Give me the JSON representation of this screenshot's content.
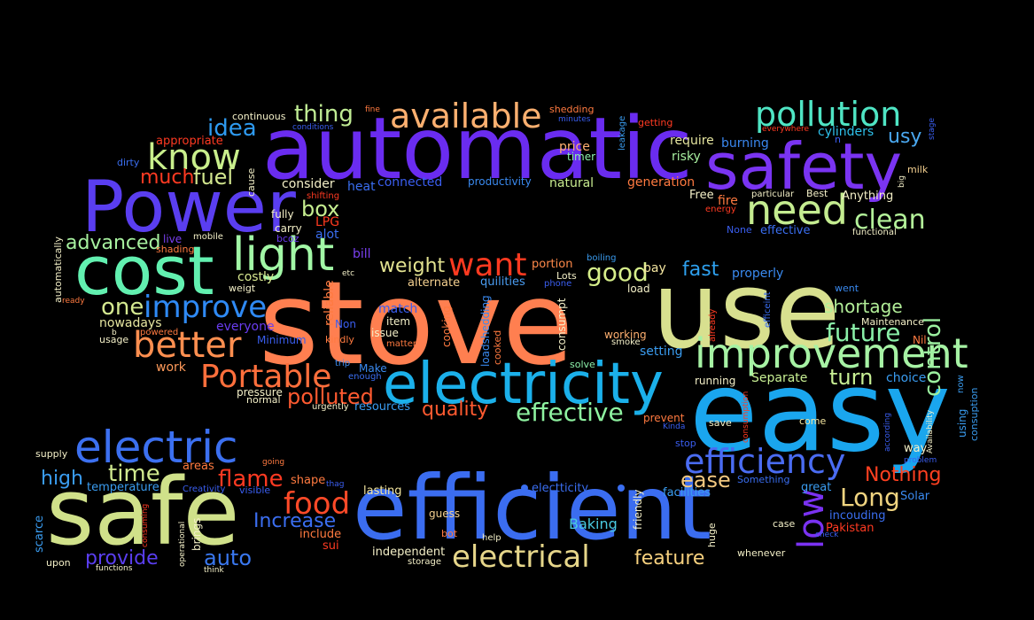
{
  "words": [
    {
      "text": "stove",
      "color": "#ff7f50"
    },
    {
      "text": "use",
      "color": "#d8e08f"
    },
    {
      "text": "easy",
      "color": "#1aa6ee"
    },
    {
      "text": "automatic",
      "color": "#6a2cf0"
    },
    {
      "text": "safe",
      "color": "#d0e18a"
    },
    {
      "text": "efficient",
      "color": "#3b6df0"
    },
    {
      "text": "cost",
      "color": "#62f0b0"
    },
    {
      "text": "Power",
      "color": "#5a3ef0"
    },
    {
      "text": "safety",
      "color": "#7a34f2"
    },
    {
      "text": "electricity",
      "color": "#1bb0ea"
    },
    {
      "text": "improvement",
      "color": "#a6f2a4"
    },
    {
      "text": "light",
      "color": "#a2f7a6"
    },
    {
      "text": "electric",
      "color": "#3c70f0"
    },
    {
      "text": "pollution",
      "color": "#4fe5c4"
    },
    {
      "text": "need",
      "color": "#c4ec90"
    },
    {
      "text": "available",
      "color": "#fcb070"
    },
    {
      "text": "know",
      "color": "#c9ef8c"
    },
    {
      "text": "improve",
      "color": "#2f8af5"
    },
    {
      "text": "better",
      "color": "#ff8f50"
    },
    {
      "text": "Portable",
      "color": "#ff6f3c"
    },
    {
      "text": "want",
      "color": "#ff3a20"
    },
    {
      "text": "efficiency",
      "color": "#4a6cf2"
    },
    {
      "text": "electrical",
      "color": "#e6d68a"
    },
    {
      "text": "future",
      "color": "#8af0a8"
    },
    {
      "text": "clean",
      "color": "#b4f29a"
    },
    {
      "text": "effective",
      "color": "#8ef2a0"
    },
    {
      "text": "food",
      "color": "#ff4a28"
    },
    {
      "text": "control",
      "color": "#9cf0a0"
    },
    {
      "text": "polluted",
      "color": "#ff5a30"
    },
    {
      "text": "Long",
      "color": "#f0d480"
    },
    {
      "text": "low",
      "color": "#7a32f2"
    },
    {
      "text": "good",
      "color": "#d6ee8a"
    },
    {
      "text": "quality",
      "color": "#ff5a30"
    },
    {
      "text": "turn",
      "color": "#c8f094"
    },
    {
      "text": "time",
      "color": "#d0e88e"
    },
    {
      "text": "one",
      "color": "#d4e890"
    },
    {
      "text": "advanced",
      "color": "#a8f2a0"
    },
    {
      "text": "thing",
      "color": "#c0ec94"
    },
    {
      "text": "idea",
      "color": "#2e9af0"
    },
    {
      "text": "flame",
      "color": "#ff3a22"
    },
    {
      "text": "provide",
      "color": "#5a3ef0"
    },
    {
      "text": "auto",
      "color": "#3a78f0"
    },
    {
      "text": "high",
      "color": "#3a9cf0"
    },
    {
      "text": "box",
      "color": "#c6ee90"
    },
    {
      "text": "fuel",
      "color": "#d2e68e"
    },
    {
      "text": "much",
      "color": "#ff3a22"
    },
    {
      "text": "weight",
      "color": "#e2e290"
    },
    {
      "text": "ease",
      "color": "#f2c880"
    },
    {
      "text": "feature",
      "color": "#f6d07e"
    },
    {
      "text": "Increase",
      "color": "#3b6ef0"
    },
    {
      "text": "Nothing",
      "color": "#ff4020"
    },
    {
      "text": "fast",
      "color": "#2ea0ee"
    },
    {
      "text": "shortage",
      "color": "#b2ee98"
    },
    {
      "text": "usy",
      "color": "#4aa8f0"
    },
    {
      "text": "Baking",
      "color": "#4acae0"
    },
    {
      "text": "require",
      "color": "#e6e6a0"
    },
    {
      "text": "risky",
      "color": "#a8f0a0"
    },
    {
      "text": "burning",
      "color": "#3a88f0"
    },
    {
      "text": "cylinders",
      "color": "#2ec0ea"
    },
    {
      "text": "generation",
      "color": "#ff7a40"
    },
    {
      "text": "natural",
      "color": "#c8ec90"
    },
    {
      "text": "price",
      "color": "#ffb070"
    },
    {
      "text": "timer",
      "color": "#8cf0aa"
    },
    {
      "text": "connected",
      "color": "#3a5ef0"
    },
    {
      "text": "productivity",
      "color": "#3a8af0"
    },
    {
      "text": "consider",
      "color": "#f4f0c8"
    },
    {
      "text": "heat",
      "color": "#3a6ef0"
    },
    {
      "text": "fully",
      "color": "#f4f0c8"
    },
    {
      "text": "carry",
      "color": "#f4f0c8"
    },
    {
      "text": "LPG",
      "color": "#ff3a20"
    },
    {
      "text": "alot",
      "color": "#3a6ef0"
    },
    {
      "text": "bcoz",
      "color": "#6a3cf0"
    },
    {
      "text": "bill",
      "color": "#7a40f0"
    },
    {
      "text": "costly",
      "color": "#d8e890"
    },
    {
      "text": "weigt",
      "color": "#f4f0c8"
    },
    {
      "text": "live",
      "color": "#7a40f0"
    },
    {
      "text": "shading",
      "color": "#ff7a40"
    },
    {
      "text": "mobile",
      "color": "#f4f0c8"
    },
    {
      "text": "nowadays",
      "color": "#e6e6a0"
    },
    {
      "text": "everyone",
      "color": "#6a3cf0"
    },
    {
      "text": "Minimum",
      "color": "#3a5ef0"
    },
    {
      "text": "usage",
      "color": "#f4f0c8"
    },
    {
      "text": "powered",
      "color": "#ff7a40"
    },
    {
      "text": "work",
      "color": "#ff9a5a"
    },
    {
      "text": "pressure",
      "color": "#f4f0c8"
    },
    {
      "text": "normal",
      "color": "#f4f0c8"
    },
    {
      "text": "urgently",
      "color": "#f4f0c8"
    },
    {
      "text": "resources",
      "color": "#3a9cf0"
    },
    {
      "text": "enough",
      "color": "#3a6ef0"
    },
    {
      "text": "Make",
      "color": "#3a8af0"
    },
    {
      "text": "trip",
      "color": "#3a8af0"
    },
    {
      "text": "kindly",
      "color": "#ff7a40"
    },
    {
      "text": "matter",
      "color": "#ff7a40"
    },
    {
      "text": "issue",
      "color": "#f4f0c8"
    },
    {
      "text": "item",
      "color": "#f4f0c8"
    },
    {
      "text": "Non",
      "color": "#3a5ef0"
    },
    {
      "text": "match",
      "color": "#3a5ef0"
    },
    {
      "text": "reliable",
      "color": "#ff7a40"
    },
    {
      "text": "cooking",
      "color": "#ff7a40"
    },
    {
      "text": "loadshedding",
      "color": "#3a8af0"
    },
    {
      "text": "cooked",
      "color": "#ff7a40"
    },
    {
      "text": "consumpt",
      "color": "#f4f0c8"
    },
    {
      "text": "solve",
      "color": "#8cf0aa"
    },
    {
      "text": "alternate",
      "color": "#f4d090"
    },
    {
      "text": "quilities",
      "color": "#4a9cf0"
    },
    {
      "text": "phone",
      "color": "#3a5ef0"
    },
    {
      "text": "Lots",
      "color": "#f4f0c8"
    },
    {
      "text": "portion",
      "color": "#ff8a4a"
    },
    {
      "text": "boiling",
      "color": "#3a9cf0"
    },
    {
      "text": "pay",
      "color": "#f4e6a0"
    },
    {
      "text": "load",
      "color": "#f4f0c8"
    },
    {
      "text": "properly",
      "color": "#3a8af0"
    },
    {
      "text": "working",
      "color": "#ffb070"
    },
    {
      "text": "smoke",
      "color": "#f4f0c8"
    },
    {
      "text": "setting",
      "color": "#3a9cf0"
    },
    {
      "text": "running",
      "color": "#f4f0c8"
    },
    {
      "text": "Separate",
      "color": "#c8f094"
    },
    {
      "text": "choice",
      "color": "#3a9cf0"
    },
    {
      "text": "already",
      "color": "#ff3a22"
    },
    {
      "text": "efficeint",
      "color": "#3a6ef0"
    },
    {
      "text": "went",
      "color": "#3a8af0"
    },
    {
      "text": "Maintenance",
      "color": "#f4f0c8"
    },
    {
      "text": "Nil",
      "color": "#ff7a40"
    },
    {
      "text": "Free",
      "color": "#f4f0c8"
    },
    {
      "text": "fire",
      "color": "#ff7a40"
    },
    {
      "text": "energy",
      "color": "#ff3a22"
    },
    {
      "text": "particular",
      "color": "#f4f0c8"
    },
    {
      "text": "Best",
      "color": "#f4f0c8"
    },
    {
      "text": "Anything",
      "color": "#f4f0c8"
    },
    {
      "text": "None",
      "color": "#3a5ef0"
    },
    {
      "text": "effective",
      "color": "#3a6ef0"
    },
    {
      "text": "functional",
      "color": "#f4f0c8"
    },
    {
      "text": "big",
      "color": "#f4f0c8"
    },
    {
      "text": "milk",
      "color": "#f4d090"
    },
    {
      "text": "everywhere",
      "color": "#ff3a22"
    },
    {
      "text": "n",
      "color": "#3a5ef0"
    },
    {
      "text": "stage",
      "color": "#3a5ef0"
    },
    {
      "text": "getting",
      "color": "#ff3a22"
    },
    {
      "text": "leakage",
      "color": "#3a9cf0"
    },
    {
      "text": "shedding",
      "color": "#ff7a40"
    },
    {
      "text": "minutes",
      "color": "#3a5ef0"
    },
    {
      "text": "fine",
      "color": "#ff7a40"
    },
    {
      "text": "continuous",
      "color": "#f4f0c8"
    },
    {
      "text": "conditions",
      "color": "#3a5ef0"
    },
    {
      "text": "appropriate",
      "color": "#ff3a22"
    },
    {
      "text": "dirty",
      "color": "#3a6ef0"
    },
    {
      "text": "cause",
      "color": "#f4f0c8"
    },
    {
      "text": "shifting",
      "color": "#ff3a22"
    },
    {
      "text": "automatically",
      "color": "#f4f0c8"
    },
    {
      "text": "ready",
      "color": "#ff7a40"
    },
    {
      "text": "etc",
      "color": "#f4f0c8"
    },
    {
      "text": "b",
      "color": "#f4f0c8"
    },
    {
      "text": "supply",
      "color": "#f4f0c8"
    },
    {
      "text": "temperature",
      "color": "#3a9cf0"
    },
    {
      "text": "Creativity",
      "color": "#3a5ef0"
    },
    {
      "text": "visible",
      "color": "#3a5ef0"
    },
    {
      "text": "areas",
      "color": "#ff7a40"
    },
    {
      "text": "going",
      "color": "#ff7a40"
    },
    {
      "text": "shape",
      "color": "#ff7a40"
    },
    {
      "text": "thag",
      "color": "#3a5ef0"
    },
    {
      "text": "lasting",
      "color": "#f4e6a0"
    },
    {
      "text": "scarce",
      "color": "#3a9cf0"
    },
    {
      "text": "consuming",
      "color": "#ff3a22"
    },
    {
      "text": "brings",
      "color": "#f4f0c8"
    },
    {
      "text": "operational",
      "color": "#f4f0c8"
    },
    {
      "text": "upon",
      "color": "#f4f0c8"
    },
    {
      "text": "functions",
      "color": "#f4f0c8"
    },
    {
      "text": "think",
      "color": "#f4f0c8"
    },
    {
      "text": "include",
      "color": "#ff7a40"
    },
    {
      "text": "sui",
      "color": "#ff3a22"
    },
    {
      "text": "independent",
      "color": "#f4f0c8"
    },
    {
      "text": "storage",
      "color": "#f4f0c8"
    },
    {
      "text": "bot",
      "color": "#ff7a40"
    },
    {
      "text": "guess",
      "color": "#f4d090"
    },
    {
      "text": "help",
      "color": "#f4f0c8"
    },
    {
      "text": "electticity",
      "color": "#3a6ef0"
    },
    {
      "text": "friendly",
      "color": "#f4f0c8"
    },
    {
      "text": "huge",
      "color": "#f4f0c8"
    },
    {
      "text": "facilities",
      "color": "#3a9cf0"
    },
    {
      "text": "stop",
      "color": "#3a5ef0"
    },
    {
      "text": "Kinda",
      "color": "#3a5ef0"
    },
    {
      "text": "save",
      "color": "#f4f0c8"
    },
    {
      "text": "prevent",
      "color": "#ff7a40"
    },
    {
      "text": "consumption",
      "color": "#ff3a22"
    },
    {
      "text": "come",
      "color": "#f4e6a0"
    },
    {
      "text": "Something",
      "color": "#3a6ef0"
    },
    {
      "text": "great",
      "color": "#3a9cf0"
    },
    {
      "text": "case",
      "color": "#f4f0c8"
    },
    {
      "text": "whenever",
      "color": "#f4f0c8"
    },
    {
      "text": "check",
      "color": "#3a5ef0"
    },
    {
      "text": "Pakistan",
      "color": "#ff3a22"
    },
    {
      "text": "incouding",
      "color": "#3a6ef0"
    },
    {
      "text": "Solar",
      "color": "#3a8af0"
    },
    {
      "text": "way",
      "color": "#f4f0c8"
    },
    {
      "text": "problem",
      "color": "#3a5ef0"
    },
    {
      "text": "according",
      "color": "#3a5ef0"
    },
    {
      "text": "Availability",
      "color": "#f4f0c8"
    },
    {
      "text": "using",
      "color": "#3a9cf0"
    },
    {
      "text": "now",
      "color": "#3a9cf0"
    },
    {
      "text": "consuption",
      "color": "#3a9cf0"
    }
  ]
}
